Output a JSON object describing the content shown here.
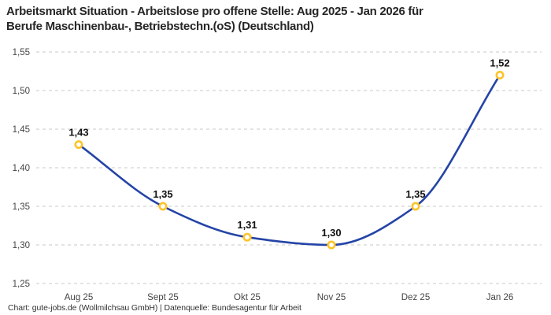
{
  "header": {
    "title_lines": [
      "Arbeitsmarkt Situation - Arbeitslose pro offene Stelle: Aug 2025 - Jan 2026 für",
      "Berufe Maschinenbau-, Betriebstechn.(oS) (Deutschland)"
    ]
  },
  "chart_data": {
    "type": "line",
    "title": "Arbeitsmarkt Situation - Arbeitslose pro offene Stelle: Aug 2025 - Jan 2026 für Berufe Maschinenbau-, Betriebstechn.(oS) (Deutschland)",
    "categories": [
      "Aug 25",
      "Sept 25",
      "Okt 25",
      "Nov 25",
      "Dez 25",
      "Jan 26"
    ],
    "values": [
      1.43,
      1.35,
      1.31,
      1.3,
      1.35,
      1.52
    ],
    "point_labels": [
      "1,43",
      "1,35",
      "1,31",
      "1,30",
      "1,35",
      "1,52"
    ],
    "yticks": [
      1.25,
      1.3,
      1.35,
      1.4,
      1.45,
      1.5,
      1.55
    ],
    "ytick_labels": [
      "1,25",
      "1,30",
      "1,35",
      "1,40",
      "1,45",
      "1,50",
      "1,55"
    ],
    "ylim": [
      1.25,
      1.55
    ],
    "xlabel": "",
    "ylabel": "",
    "grid": "horizontal-dashed",
    "legend": "none",
    "curve": "smooth-monotone"
  },
  "colors": {
    "line": "#2444a6",
    "marker_stroke": "#fdc428",
    "marker_fill": "#ffffff",
    "grid": "#c9c9c9",
    "title_text": "#262626",
    "tick_text": "#444444",
    "point_label_text": "#111111",
    "footer_text": "#333333",
    "background": "#ffffff"
  },
  "footer": {
    "text": "Chart: gute-jobs.de (Wollmilchsau GmbH) | Datenquelle: Bundesagentur für Arbeit"
  }
}
